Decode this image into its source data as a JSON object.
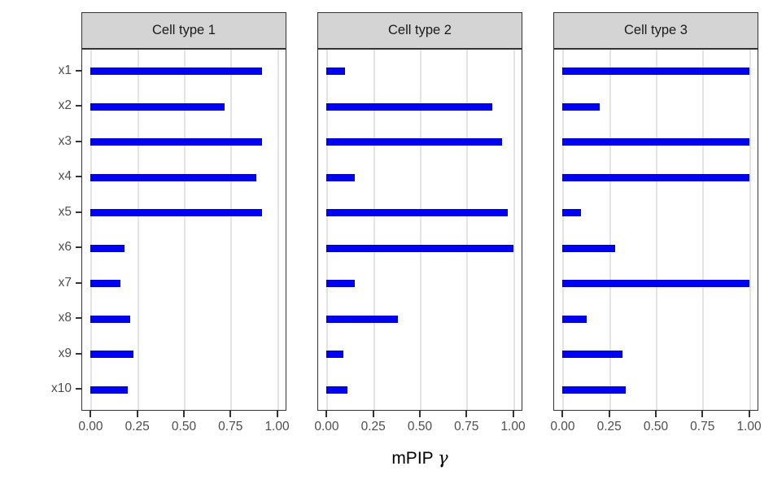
{
  "chart_data": {
    "type": "bar",
    "orientation": "horizontal",
    "xlabel": "mPIP γ",
    "xlabel_prefix": "mPIP ",
    "xlabel_symbol": "γ",
    "categories": [
      "x1",
      "x2",
      "x3",
      "x4",
      "x5",
      "x6",
      "x7",
      "x8",
      "x9",
      "x10"
    ],
    "x_ticks": [
      "0.00",
      "0.25",
      "0.50",
      "0.75",
      "1.00"
    ],
    "x_tick_values": [
      0,
      0.25,
      0.5,
      0.75,
      1
    ],
    "xlim": [
      0,
      1
    ],
    "grid": "vertical-major-only",
    "legend": "none",
    "facets": [
      {
        "label": "Cell type 1",
        "values": [
          0.92,
          0.72,
          0.92,
          0.89,
          0.92,
          0.18,
          0.16,
          0.21,
          0.23,
          0.2
        ]
      },
      {
        "label": "Cell type 2",
        "values": [
          0.1,
          0.89,
          0.94,
          0.15,
          0.97,
          1.0,
          0.15,
          0.38,
          0.09,
          0.11
        ]
      },
      {
        "label": "Cell type 3",
        "values": [
          1.0,
          0.2,
          1.0,
          1.0,
          0.1,
          0.28,
          1.0,
          0.13,
          0.32,
          0.34
        ]
      }
    ],
    "colors": {
      "bar_fill": "#0000f5",
      "bar_border": "#0000c0",
      "strip_bg": "#d4d4d4",
      "panel_border": "#333333",
      "grid_line": "#e4e4e4",
      "tick_color": "#333333",
      "tick_label_color": "#4d4d4d",
      "axis_title_color": "#000000",
      "background": "#ffffff"
    }
  }
}
